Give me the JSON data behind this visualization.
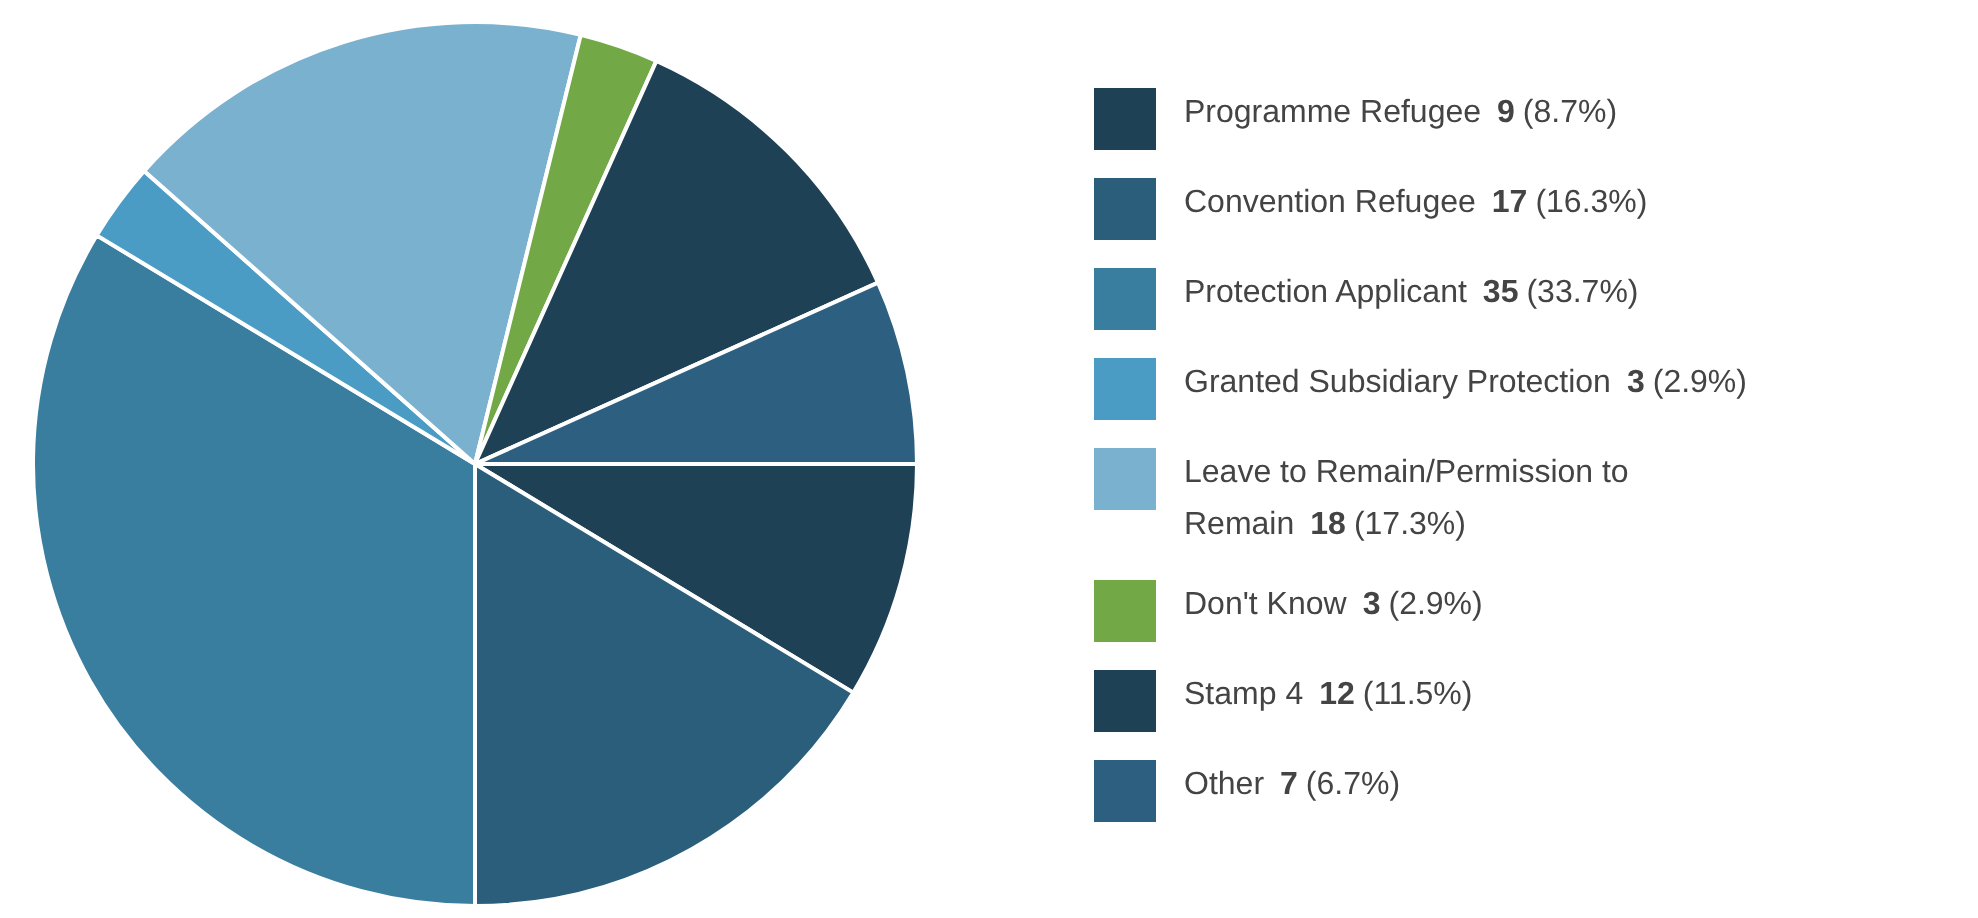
{
  "chart_data": {
    "type": "pie",
    "categories": [
      "Programme Refugee",
      "Convention Refugee",
      "Protection Applicant",
      "Granted Subsidiary Protection",
      "Leave to Remain/Permission to Remain",
      "Don't Know",
      "Stamp 4",
      "Other"
    ],
    "values": [
      9,
      17,
      35,
      3,
      18,
      3,
      12,
      7
    ],
    "value_labels": [
      "9 (8.7%)",
      "17 (16.3%)",
      "35 (33.7%)",
      "3 (2.9%)",
      "18 (17.3%)",
      "3 (2.9%)",
      "12 (11.5%)",
      "7 (6.7%)"
    ],
    "colors": [
      "#1f4155",
      "#2b5e7a",
      "#3a7e9f",
      "#4a9cc4",
      "#7ab1cf",
      "#72a845",
      "#1f4155",
      "#2d6080"
    ],
    "legend": "right"
  }
}
